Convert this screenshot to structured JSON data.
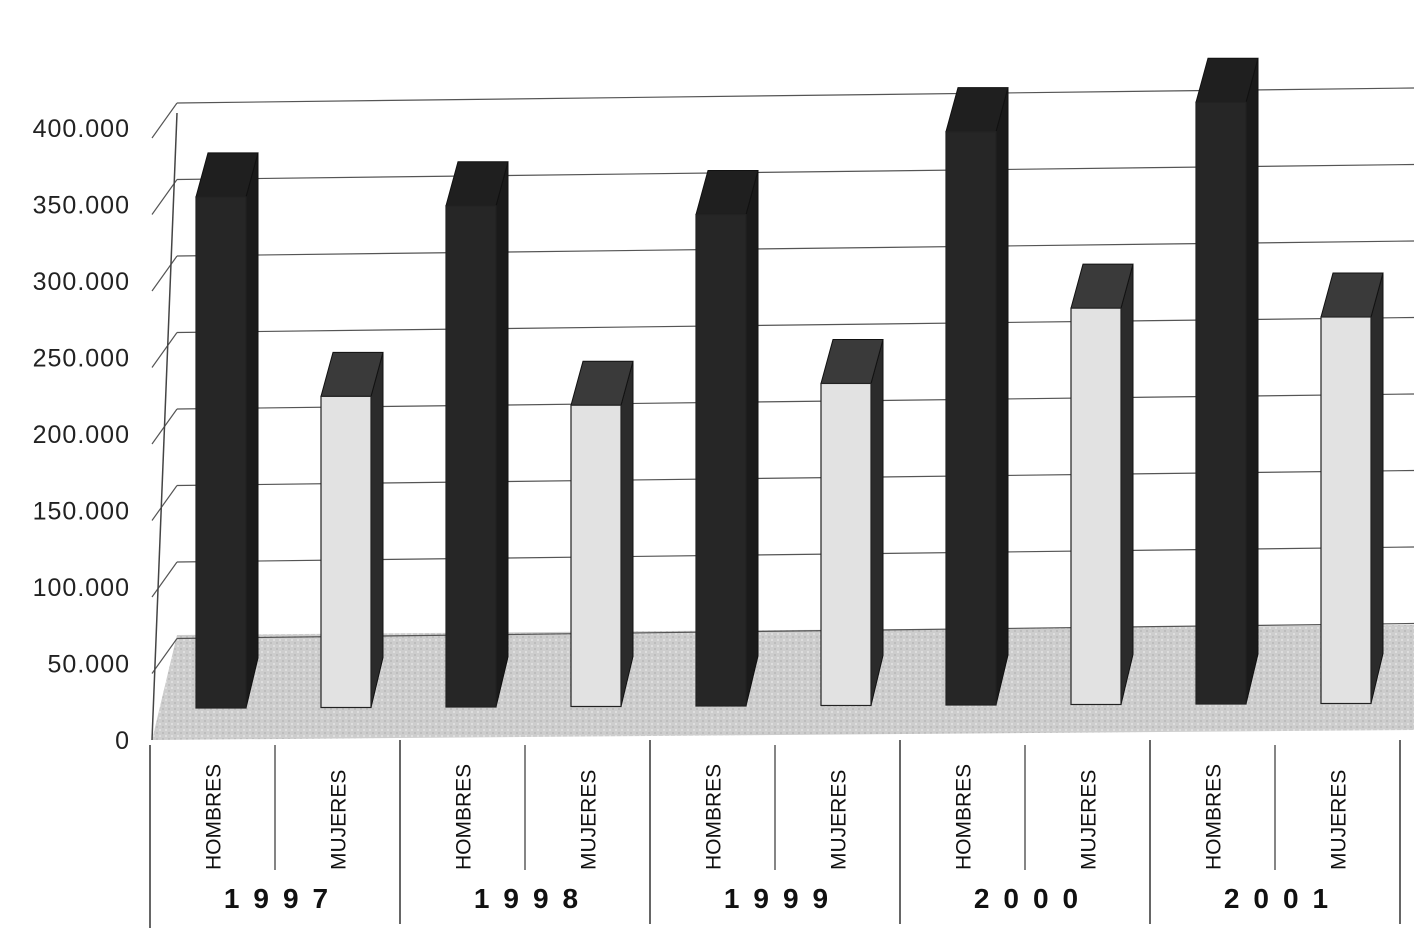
{
  "chart_data": {
    "type": "bar",
    "style": "3d-column",
    "groups": [
      "1997",
      "1998",
      "1999",
      "2000",
      "2001"
    ],
    "categories": [
      "HOMBRES",
      "MUJERES"
    ],
    "series": [
      {
        "values": [
          355000,
          225000
        ]
      },
      {
        "values": [
          350000,
          220000
        ]
      },
      {
        "values": [
          345000,
          235000
        ]
      },
      {
        "values": [
          400000,
          285000
        ]
      },
      {
        "values": [
          420000,
          280000
        ]
      }
    ],
    "yticks": [
      "0",
      "50.000",
      "100.000",
      "150.000",
      "200.000",
      "250.000",
      "300.000",
      "350.000",
      "400.000"
    ],
    "ylim": [
      0,
      400000
    ],
    "grid": true,
    "colors": {
      "HOMBRES": "#262626",
      "MUJERES": "#e2e2e2",
      "floor": "#cfcfcf"
    }
  }
}
